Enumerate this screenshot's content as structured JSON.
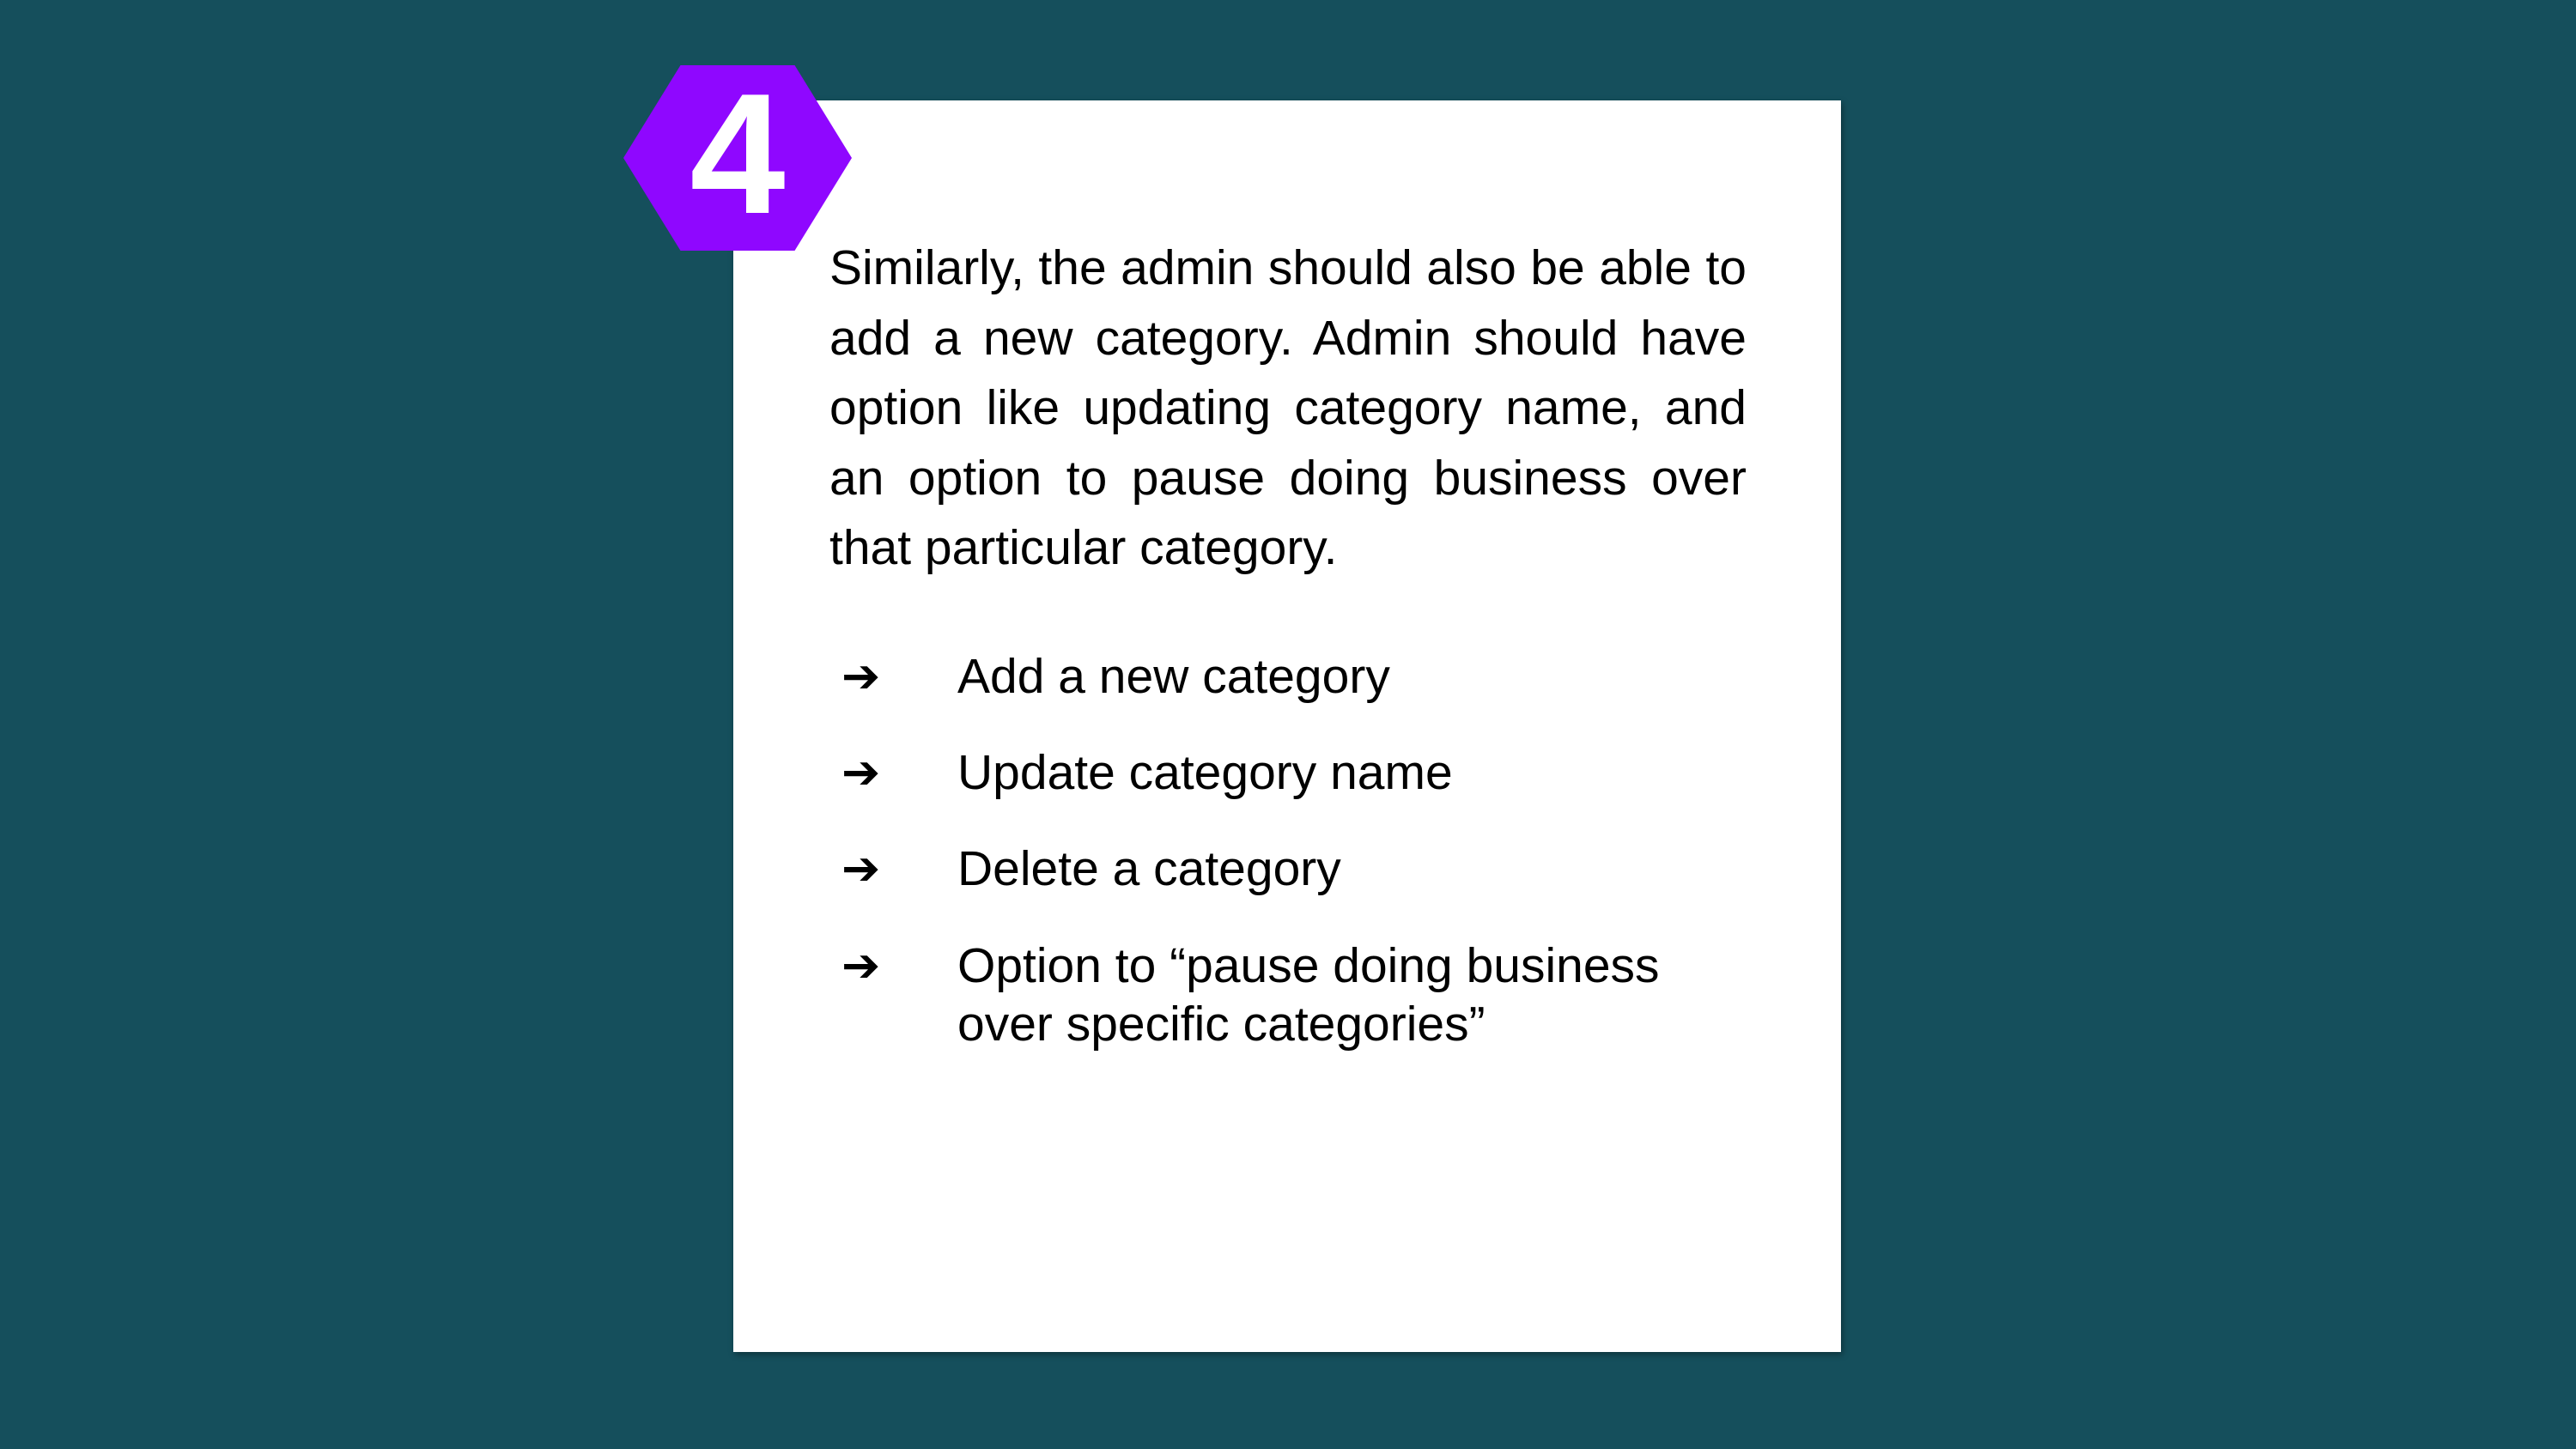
{
  "slide": {
    "badge_number": "4",
    "paragraph": "Similarly, the admin should also be able to add a new category. Admin should have option like updating category name, and an option to pause doing business over that particular category.",
    "bullet_glyph": "➔",
    "bullets": [
      "Add a new category",
      "Update category name",
      "Delete a category",
      "Option to “pause doing business\nover specific categories”"
    ]
  },
  "colors": {
    "background": "#154f5c",
    "card": "#ffffff",
    "badge": "#8f07ff",
    "text": "#000000"
  }
}
